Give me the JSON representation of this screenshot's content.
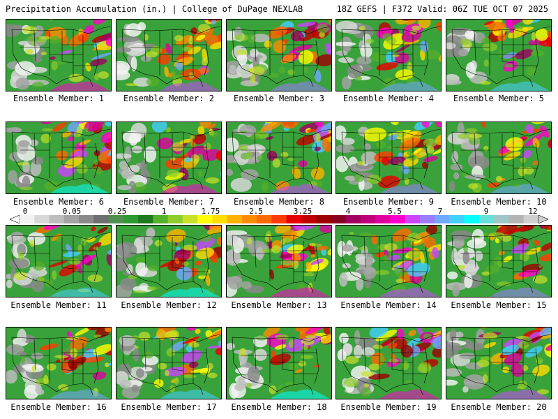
{
  "header": {
    "left": "Precipitation Accumulation (in.) | College of DuPage NEXLAB",
    "right": "18Z GEFS | F372 Valid: 06Z TUE OCT 07 2025"
  },
  "colorbar": {
    "labels": [
      "0",
      "0.05",
      "0.25",
      "1",
      "1.75",
      "2.5",
      "3.25",
      "4",
      "5.5",
      "7",
      "9",
      "12"
    ],
    "colors": [
      "#f2f2f2",
      "#d8d8d8",
      "#bdbdbd",
      "#a3a3a3",
      "#8a8a8a",
      "#6f6f6f",
      "#4f8f4f",
      "#2f9a2f",
      "#1f7a1f",
      "#55b02a",
      "#8fcc2a",
      "#c8e02a",
      "#ffff00",
      "#ffdd00",
      "#ffb300",
      "#ff8c00",
      "#ff6a00",
      "#ff3c00",
      "#e60000",
      "#c00000",
      "#9e0000",
      "#880020",
      "#a00060",
      "#c0007a",
      "#e000a0",
      "#ff00cc",
      "#cc44ff",
      "#9b7bff",
      "#6fa8ff",
      "#44d0ff",
      "#00ffff",
      "#66e0d8",
      "#9ec8c8",
      "#b4b4b4",
      "#cfcfcf"
    ]
  },
  "panels": [
    {
      "caption": "Ensemble Member: 1"
    },
    {
      "caption": "Ensemble Member: 2"
    },
    {
      "caption": "Ensemble Member: 3"
    },
    {
      "caption": "Ensemble Member: 4"
    },
    {
      "caption": "Ensemble Member: 5"
    },
    {
      "caption": "Ensemble Member: 6"
    },
    {
      "caption": "Ensemble Member: 7"
    },
    {
      "caption": "Ensemble Member: 8"
    },
    {
      "caption": "Ensemble Member: 9"
    },
    {
      "caption": "Ensemble Member: 10"
    },
    {
      "caption": "Ensemble Member: 11"
    },
    {
      "caption": "Ensemble Member: 12"
    },
    {
      "caption": "Ensemble Member: 13"
    },
    {
      "caption": "Ensemble Member: 14"
    },
    {
      "caption": "Ensemble Member: 15"
    },
    {
      "caption": "Ensemble Member: 16"
    },
    {
      "caption": "Ensemble Member: 17"
    },
    {
      "caption": "Ensemble Member: 18"
    },
    {
      "caption": "Ensemble Member: 19"
    },
    {
      "caption": "Ensemble Member: 20"
    }
  ]
}
